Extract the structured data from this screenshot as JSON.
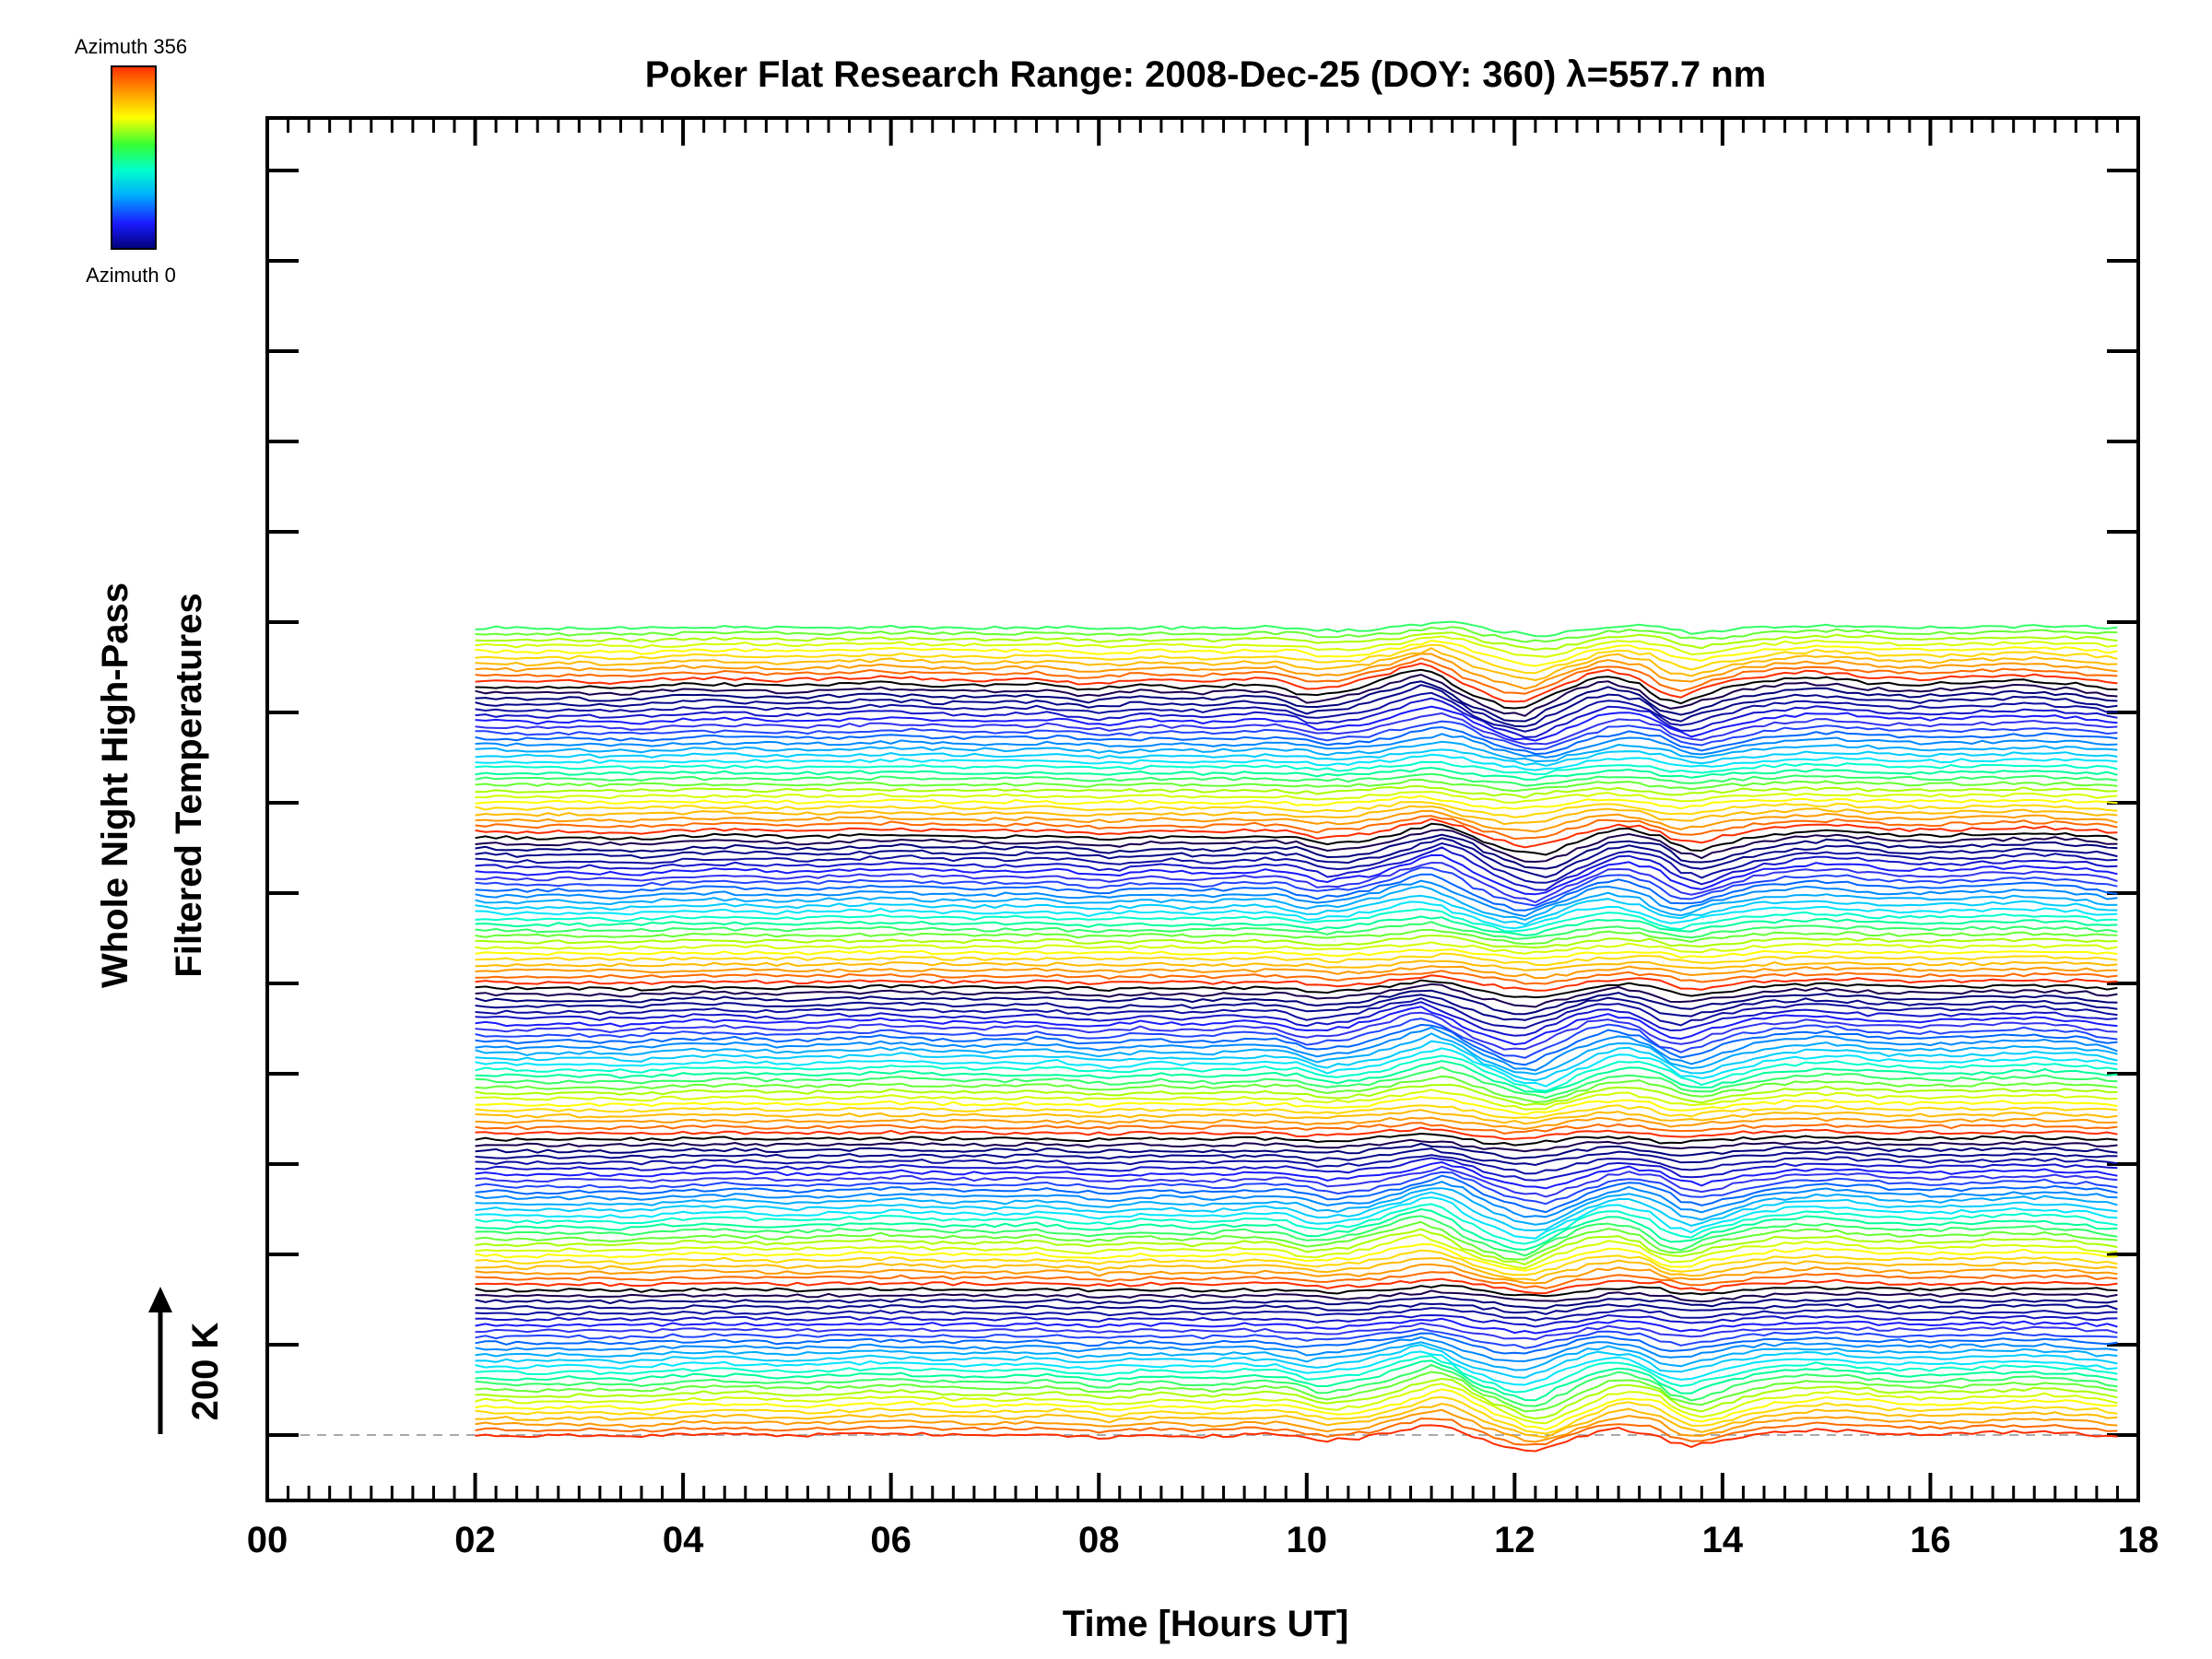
{
  "title": "Poker Flat Research Range: 2008-Dec-25 (DOY: 360) λ=557.7 nm",
  "colorbar": {
    "top_label": "Azimuth 356",
    "bottom_label": "Azimuth 0",
    "colors": [
      "#ff2d00",
      "#ff9900",
      "#ffff00",
      "#33ff33",
      "#00ffcc",
      "#00aaff",
      "#1a1aff",
      "#00007a"
    ]
  },
  "chart_data": {
    "type": "line",
    "title": "Poker Flat Research Range: 2008-Dec-25 (DOY: 360) λ=557.7 nm",
    "xlabel": "Time [Hours UT]",
    "ylabel_line1": "Whole Night High-Pass",
    "ylabel_line2": "Filtered Temperatures",
    "scale_label": "200 K",
    "xlim": [
      0,
      18
    ],
    "x_ticks": [
      "00",
      "02",
      "04",
      "06",
      "08",
      "10",
      "12",
      "14",
      "16",
      "18"
    ],
    "x_start": 2.0,
    "x_end": 17.8,
    "n_traces": 140,
    "trace_spacing_K": 20,
    "grid": false,
    "baseline_dashed": true,
    "profile_hours": [
      2.0,
      2.5,
      3.0,
      3.5,
      4.0,
      4.5,
      5.0,
      5.5,
      6.0,
      6.5,
      7.0,
      7.5,
      8.0,
      8.5,
      9.0,
      9.5,
      9.8,
      10.1,
      10.5,
      10.8,
      11.0,
      11.2,
      11.4,
      11.6,
      11.8,
      12.0,
      12.2,
      12.5,
      12.8,
      13.0,
      13.3,
      13.5,
      13.7,
      14.0,
      14.3,
      14.6,
      14.9,
      15.2,
      15.5,
      16.0,
      16.5,
      17.0,
      17.5,
      17.8
    ],
    "profile_K": [
      0,
      -3,
      -1,
      -4,
      2,
      3,
      -1,
      2,
      5,
      1,
      0,
      3,
      -6,
      1,
      -3,
      2,
      0,
      -14,
      -7,
      6,
      16,
      25,
      14,
      -5,
      -18,
      -30,
      -34,
      -12,
      8,
      14,
      4,
      -18,
      -25,
      -10,
      2,
      8,
      12,
      10,
      4,
      2,
      5,
      8,
      3,
      -5
    ],
    "color_cycle": [
      "#ff2d00",
      "#ff6a00",
      "#ff9900",
      "#ffbb00",
      "#ffd900",
      "#ffff00",
      "#d4ff00",
      "#a8ff00",
      "#66ff33",
      "#33ff66",
      "#00ff99",
      "#00ffcc",
      "#00e5ff",
      "#00ccff",
      "#00aaff",
      "#0088ff",
      "#0066ff",
      "#2244ff",
      "#3333ee",
      "#1a1aff",
      "#1515c8",
      "#0e0ea0",
      "#06068a",
      "#00007a",
      "#1a0050",
      "#000000"
    ]
  }
}
